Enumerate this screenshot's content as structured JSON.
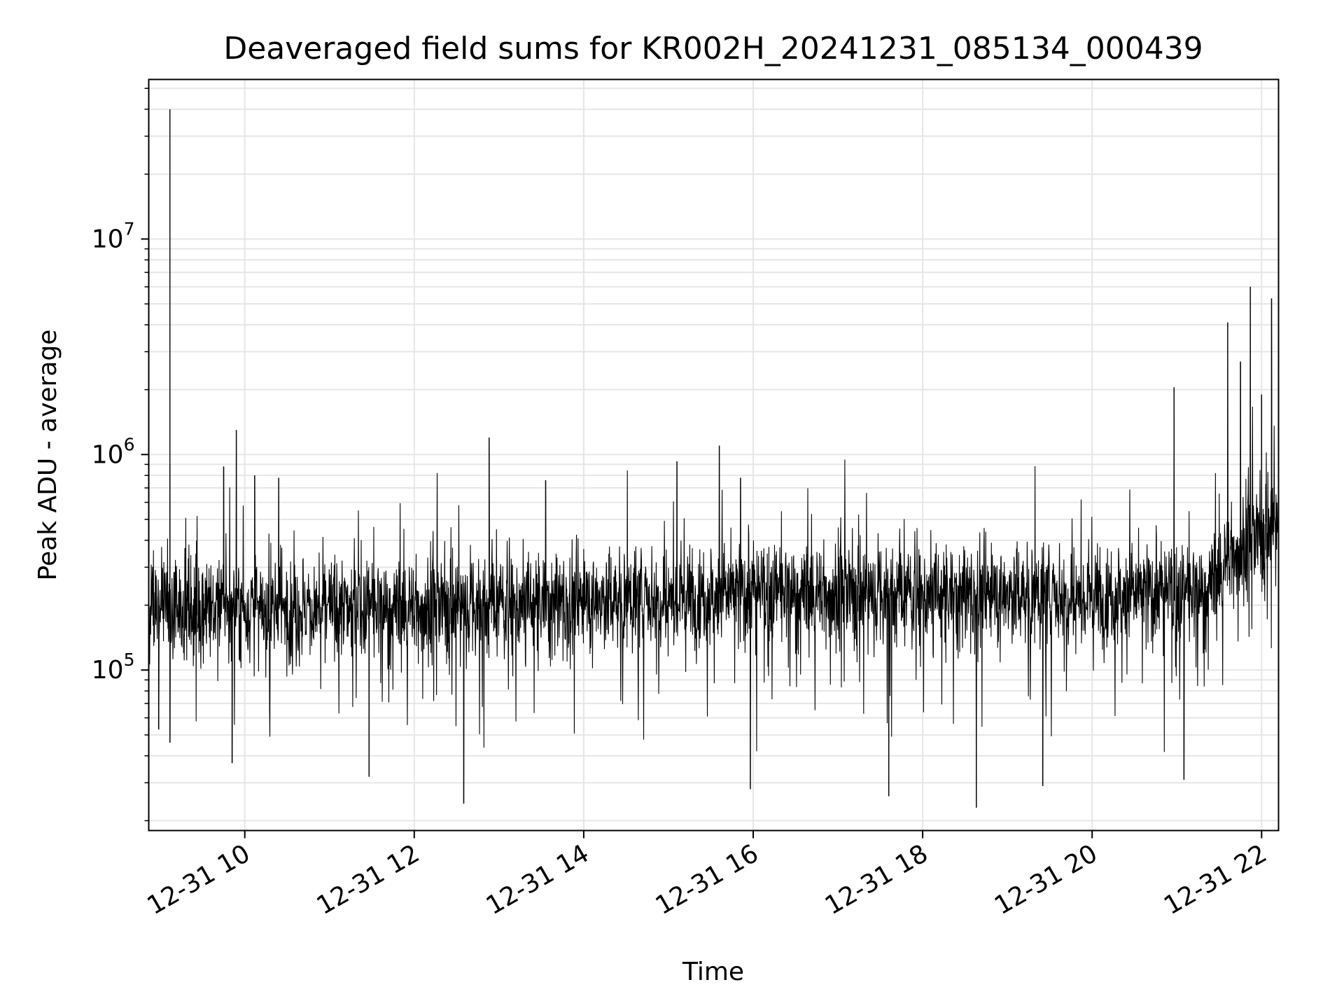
{
  "chart_data": {
    "type": "line",
    "title": "Deaveraged field sums for KR002H_20241231_085134_000439",
    "xlabel": "Time",
    "ylabel": "Peak ADU - average",
    "x_scale": "time",
    "y_scale": "log",
    "xlim": [
      "2024-12-31 08:52",
      "2024-12-31 22:12"
    ],
    "ylim": [
      18000,
      55000000
    ],
    "x_ticks": [
      {
        "value": "2024-12-31 10:00",
        "label": "12-31 10"
      },
      {
        "value": "2024-12-31 12:00",
        "label": "12-31 12"
      },
      {
        "value": "2024-12-31 14:00",
        "label": "12-31 14"
      },
      {
        "value": "2024-12-31 16:00",
        "label": "12-31 16"
      },
      {
        "value": "2024-12-31 18:00",
        "label": "12-31 18"
      },
      {
        "value": "2024-12-31 20:00",
        "label": "12-31 20"
      },
      {
        "value": "2024-12-31 22:00",
        "label": "12-31 22"
      }
    ],
    "y_ticks": [
      {
        "value": 100000,
        "base": "10",
        "exp": "5"
      },
      {
        "value": 1000000,
        "base": "10",
        "exp": "6"
      },
      {
        "value": 10000000,
        "base": "10",
        "exp": "7"
      }
    ],
    "grid": true,
    "line_color": "#000000",
    "grid_color": "#e6e6e6",
    "baseline_segments": [
      {
        "t": "2024-12-31 08:52",
        "y": 200000
      },
      {
        "t": "2024-12-31 10:00",
        "y": 190000
      },
      {
        "t": "2024-12-31 12:00",
        "y": 195000
      },
      {
        "t": "2024-12-31 14:00",
        "y": 210000
      },
      {
        "t": "2024-12-31 16:00",
        "y": 230000
      },
      {
        "t": "2024-12-31 18:00",
        "y": 225000
      },
      {
        "t": "2024-12-31 20:00",
        "y": 225000
      },
      {
        "t": "2024-12-31 21:20",
        "y": 230000
      },
      {
        "t": "2024-12-31 21:40",
        "y": 350000
      },
      {
        "t": "2024-12-31 22:12",
        "y": 480000
      }
    ],
    "spikes": [
      {
        "t": "2024-12-31 09:07",
        "y": 40000000
      },
      {
        "t": "2024-12-31 09:07",
        "y": 900000
      },
      {
        "t": "2024-12-31 09:54",
        "y": 1300000
      },
      {
        "t": "2024-12-31 09:45",
        "y": 880000
      },
      {
        "t": "2024-12-31 10:07",
        "y": 800000
      },
      {
        "t": "2024-12-31 10:24",
        "y": 780000
      },
      {
        "t": "2024-12-31 12:53",
        "y": 1200000
      },
      {
        "t": "2024-12-31 13:33",
        "y": 760000
      },
      {
        "t": "2024-12-31 15:06",
        "y": 930000
      },
      {
        "t": "2024-12-31 15:36",
        "y": 1100000
      },
      {
        "t": "2024-12-31 15:51",
        "y": 780000
      },
      {
        "t": "2024-12-31 20:58",
        "y": 2050000
      },
      {
        "t": "2024-12-31 21:36",
        "y": 4100000
      },
      {
        "t": "2024-12-31 21:52",
        "y": 6000000
      },
      {
        "t": "2024-12-31 22:07",
        "y": 5300000
      },
      {
        "t": "2024-12-31 22:00",
        "y": 1900000
      },
      {
        "t": "2024-12-31 21:45",
        "y": 2700000
      }
    ],
    "dips": [
      {
        "t": "2024-12-31 09:07",
        "y": 46000
      },
      {
        "t": "2024-12-31 08:59",
        "y": 53000
      },
      {
        "t": "2024-12-31 09:51",
        "y": 37000
      },
      {
        "t": "2024-12-31 11:28",
        "y": 32000
      },
      {
        "t": "2024-12-31 12:35",
        "y": 24000
      },
      {
        "t": "2024-12-31 15:58",
        "y": 28000
      },
      {
        "t": "2024-12-31 17:36",
        "y": 26000
      },
      {
        "t": "2024-12-31 18:38",
        "y": 23000
      },
      {
        "t": "2024-12-31 19:25",
        "y": 29000
      },
      {
        "t": "2024-12-31 21:05",
        "y": 31000
      }
    ]
  }
}
